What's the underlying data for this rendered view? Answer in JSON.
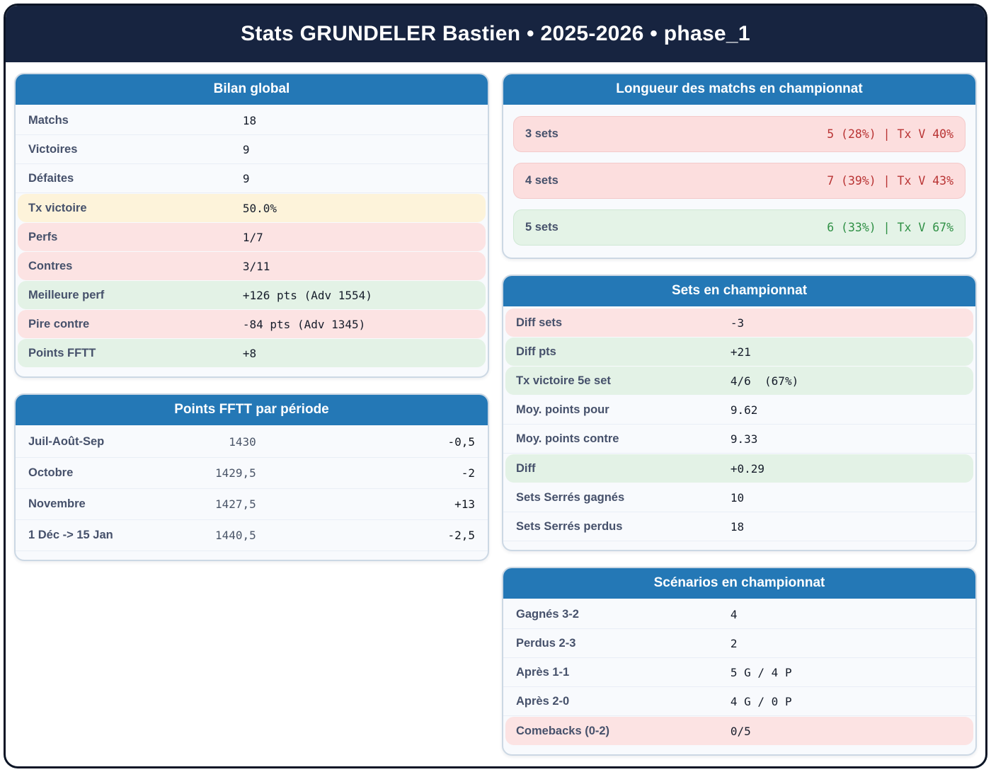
{
  "title": "Stats GRUNDELER Bastien • 2025-2026 • phase_1",
  "colors": {
    "header_navy": "#172440",
    "outer_border": "#0c1526",
    "card_header_blue": "#2478b6",
    "label_slate": "#46516b",
    "value_dark": "#161d2b",
    "bad_text": "#b93434",
    "good_text": "#2f9045",
    "warn_bg": "#fdf3da",
    "bad_bg": "#fce3e3",
    "good_bg": "#e3f2e6"
  },
  "cards": {
    "bilan": {
      "title": "Bilan global",
      "rows": [
        {
          "label": "Matchs",
          "value": "18",
          "tone": "neutral"
        },
        {
          "label": "Victoires",
          "value": "9",
          "tone": "neutral"
        },
        {
          "label": "Défaites",
          "value": "9",
          "tone": "neutral"
        },
        {
          "label": "Tx victoire",
          "value": "50.0%",
          "tone": "warn"
        },
        {
          "label": "Perfs",
          "value": "1/7",
          "tone": "bad"
        },
        {
          "label": "Contres",
          "value": "3/11",
          "tone": "bad"
        },
        {
          "label": "Meilleure perf",
          "value": "+126 pts (Adv 1554)",
          "tone": "good"
        },
        {
          "label": "Pire contre",
          "value": "-84 pts (Adv 1345)",
          "tone": "bad"
        },
        {
          "label": "Points FFTT",
          "value": "+8",
          "tone": "good"
        }
      ]
    },
    "points_periode": {
      "title": "Points FFTT par période",
      "rows": [
        {
          "label": "Juil-Août-Sep",
          "value": "1430",
          "delta": "-0,5"
        },
        {
          "label": "Octobre",
          "value": "1429,5",
          "delta": "-2"
        },
        {
          "label": "Novembre",
          "value": "1427,5",
          "delta": "+13"
        },
        {
          "label": "1 Déc -> 15 Jan",
          "value": "1440,5",
          "delta": "-2,5"
        }
      ]
    },
    "longueur": {
      "title": "Longueur des matchs en championnat",
      "rows": [
        {
          "label": "3 sets",
          "value": "5 (28%) | Tx V 40%",
          "tone": "bad"
        },
        {
          "label": "4 sets",
          "value": "7 (39%) | Tx V 43%",
          "tone": "bad"
        },
        {
          "label": "5 sets",
          "value": "6 (33%) | Tx V 67%",
          "tone": "good"
        }
      ]
    },
    "sets": {
      "title": "Sets en championnat",
      "rows": [
        {
          "label": "Diff sets",
          "value": "-3",
          "tone": "bad"
        },
        {
          "label": "Diff pts",
          "value": "+21",
          "tone": "good"
        },
        {
          "label": "Tx victoire 5e set",
          "value": "4/6  (67%)",
          "tone": "good"
        },
        {
          "label": "Moy. points pour",
          "value": "9.62",
          "tone": "neutral"
        },
        {
          "label": "Moy. points contre",
          "value": "9.33",
          "tone": "neutral"
        },
        {
          "label": "Diff",
          "value": "+0.29",
          "tone": "good"
        },
        {
          "label": "Sets Serrés gagnés",
          "value": "10",
          "tone": "neutral"
        },
        {
          "label": "Sets Serrés perdus",
          "value": "18",
          "tone": "neutral"
        }
      ]
    },
    "scenarios": {
      "title": "Scénarios en championnat",
      "rows": [
        {
          "label": "Gagnés 3-2",
          "value": "4",
          "tone": "neutral"
        },
        {
          "label": "Perdus 2-3",
          "value": "2",
          "tone": "neutral"
        },
        {
          "label": "Après 1-1",
          "value": "5 G / 4 P",
          "tone": "neutral"
        },
        {
          "label": "Après 2-0",
          "value": "4 G / 0 P",
          "tone": "neutral"
        },
        {
          "label": "Comebacks (0-2)",
          "value": "0/5",
          "tone": "bad"
        }
      ]
    }
  }
}
